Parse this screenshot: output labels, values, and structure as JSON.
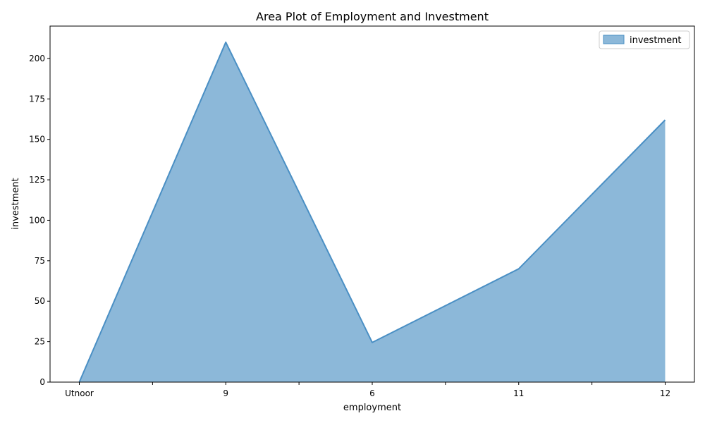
{
  "chart_data": {
    "type": "area",
    "title": "Area Plot of Employment and Investment",
    "xlabel": "employment",
    "ylabel": "investment",
    "categories": [
      "Utnoor",
      "9",
      "6",
      "11",
      "12"
    ],
    "series": [
      {
        "name": "investment",
        "values": [
          0,
          210,
          24.5,
          70,
          162
        ]
      }
    ],
    "ylim": [
      0,
      220
    ],
    "yticks": [
      0,
      25,
      50,
      75,
      100,
      125,
      150,
      175,
      200
    ],
    "legend_position": "top-right",
    "grid": false,
    "colors": {
      "fill": "#8cb8d9",
      "line": "#4a8fc4"
    }
  }
}
